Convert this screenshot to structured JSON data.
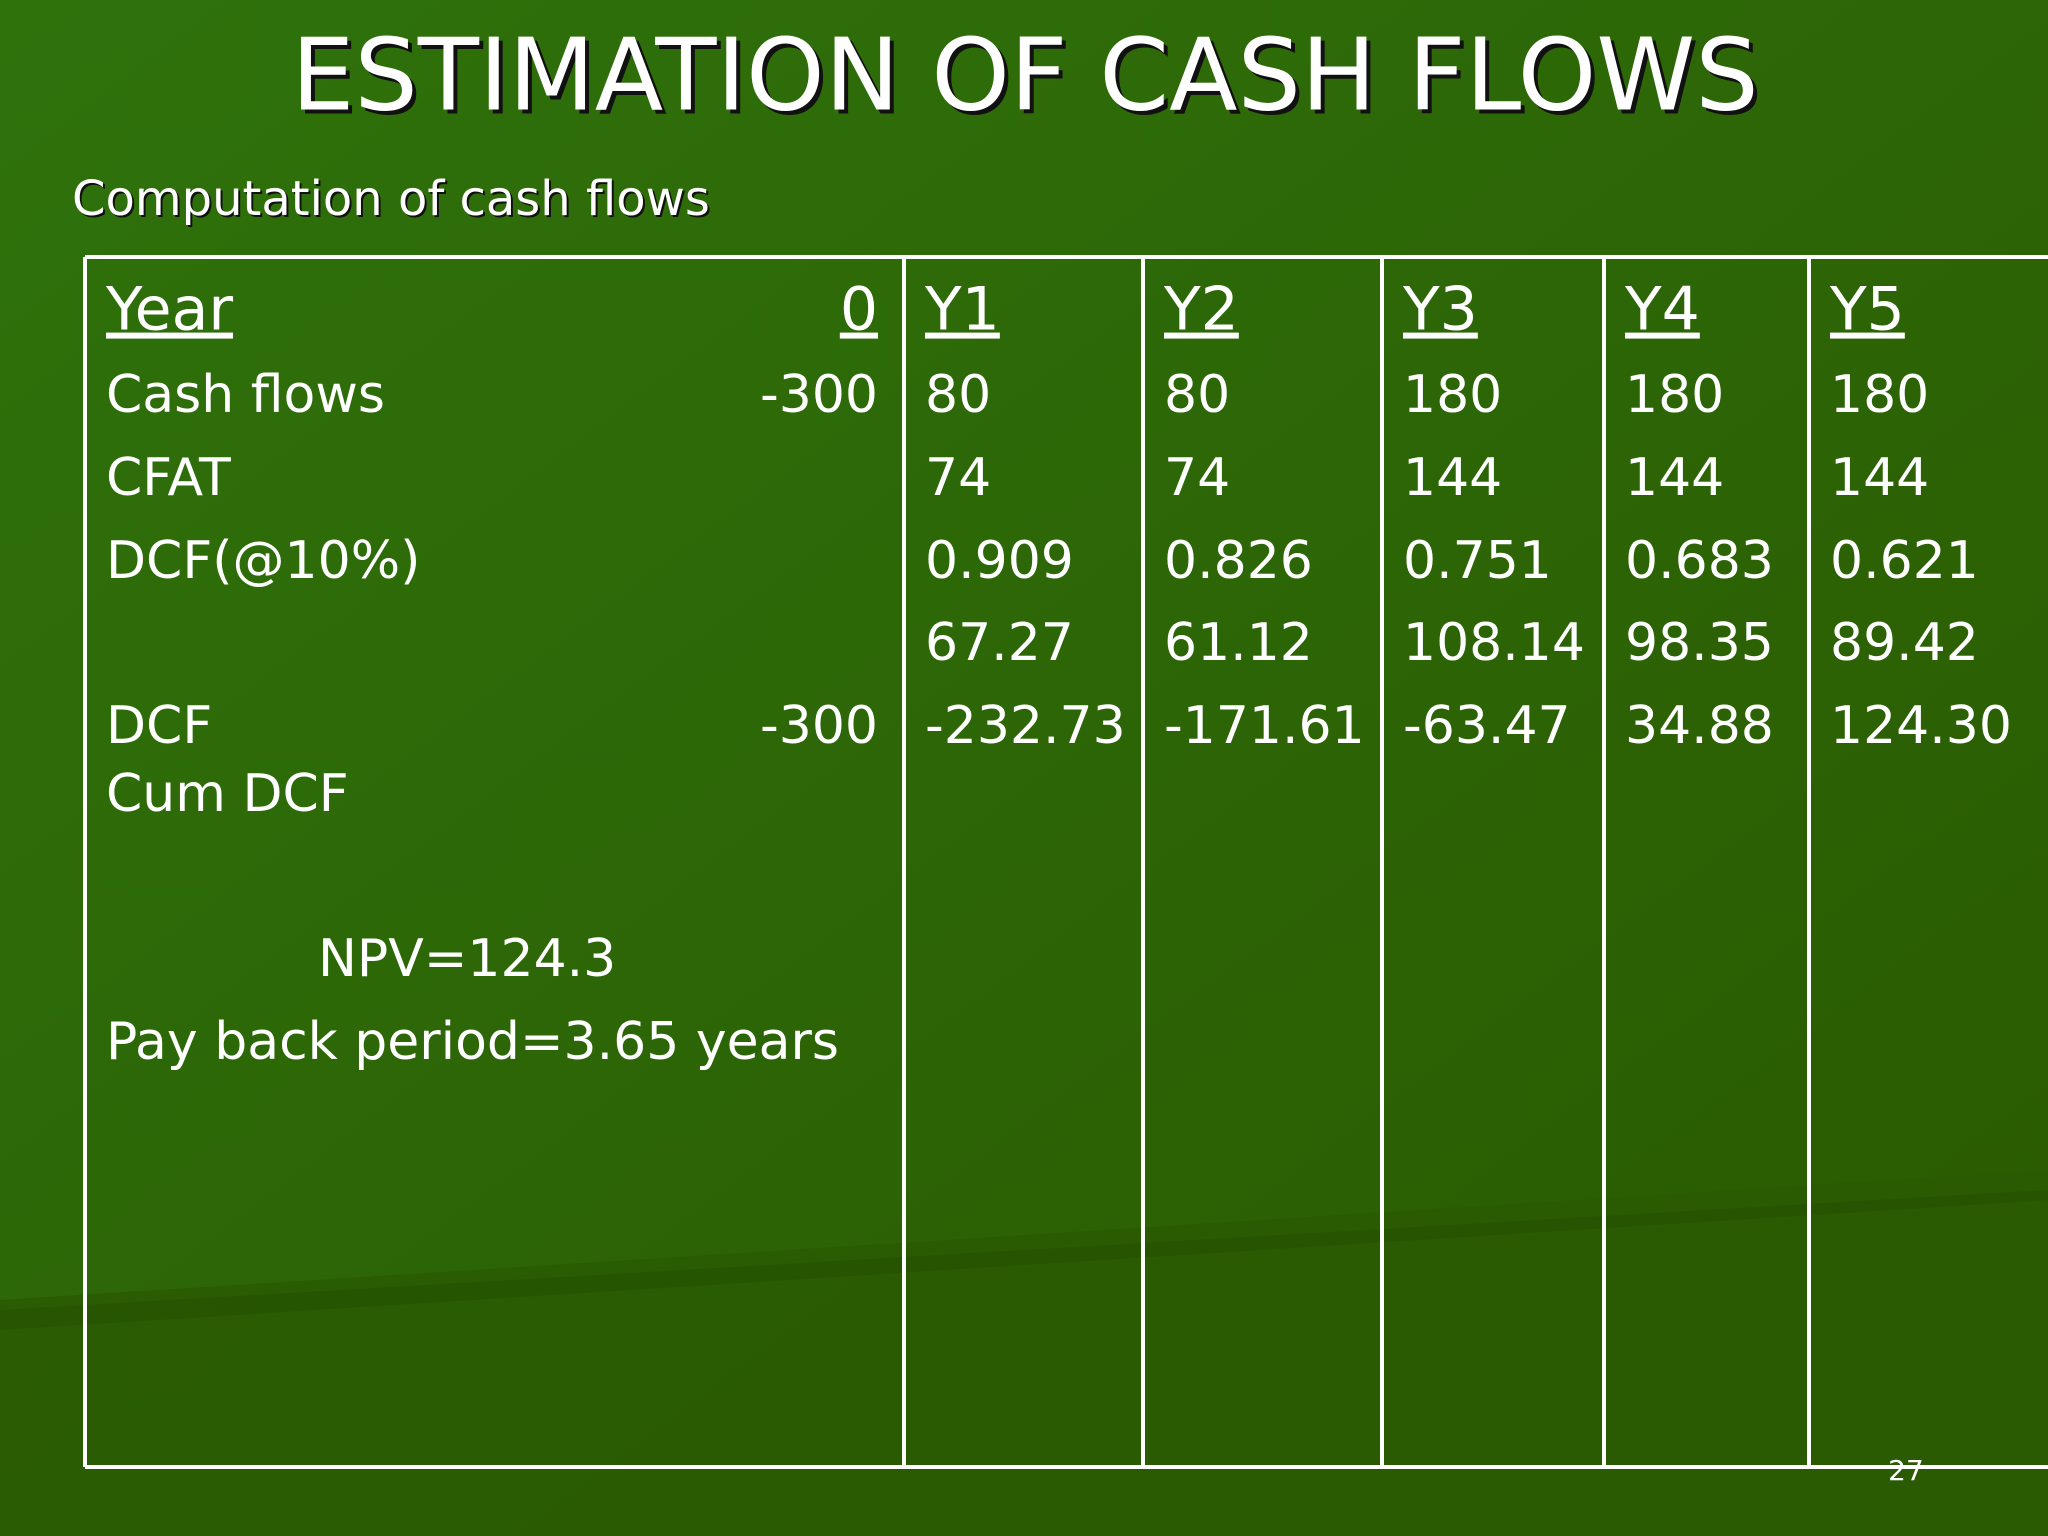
{
  "title": "ESTIMATION OF CASH FLOWS",
  "subtitle": "Computation of cash flows",
  "table": {
    "header": [
      "Year",
      "0",
      "Y1",
      "Y2",
      "Y3",
      "Y4",
      "Y5"
    ],
    "rows": [
      [
        "Cash flows",
        "-300",
        "80",
        "80",
        "180",
        "180",
        "180"
      ],
      [
        "CFAT",
        null,
        "74",
        "74",
        "144",
        "144",
        "144"
      ],
      [
        "DCF(@10%)",
        null,
        "0.909",
        "0.826",
        "0.751",
        "0.683",
        "0.621"
      ],
      [
        null,
        null,
        "67.27",
        "61.12",
        "108.14",
        "98.35",
        "89.42"
      ],
      [
        "DCF",
        "-300",
        "-232.73",
        "-171.61",
        "-63.47",
        "34.88",
        "124.30"
      ],
      [
        "Cum DCF",
        null,
        null,
        null,
        null,
        null,
        null
      ]
    ],
    "notes": [
      "NPV=124.3",
      "Pay back period=3.65 years"
    ]
  },
  "page_number": "27"
}
